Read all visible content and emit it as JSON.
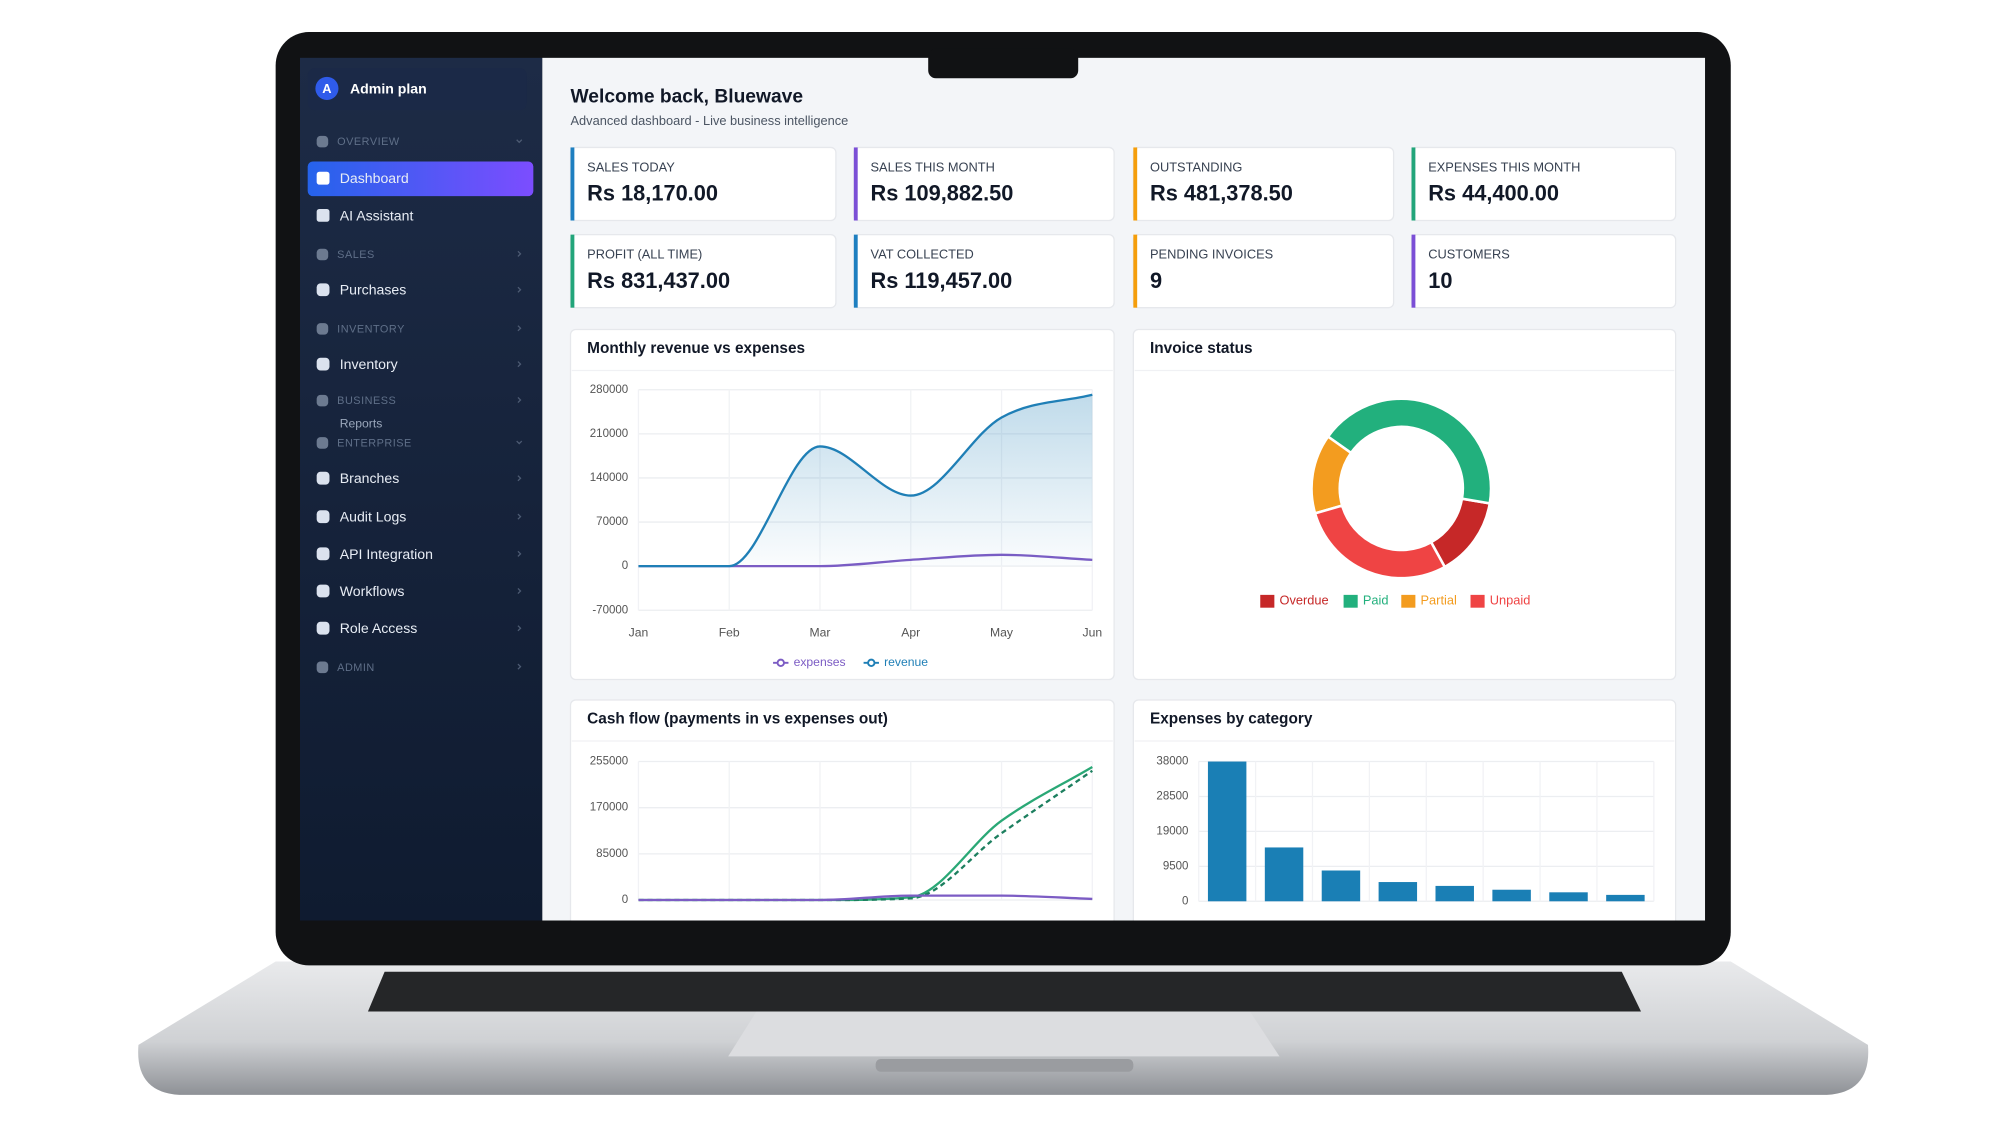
{
  "sidebar": {
    "avatar": "A",
    "account": "Admin plan",
    "items": [
      "OVERVIEW",
      "Dashboard",
      "AI Assistant",
      "SALES",
      "Purchases",
      "INVENTORY",
      "Inventory",
      "BUSINESS",
      "Reports",
      "ENTERPRISE",
      "Branches",
      "Audit Logs",
      "API Integration",
      "Workflows",
      "Role Access",
      "ADMIN"
    ]
  },
  "header": {
    "title": "Welcome back, Bluewave",
    "subtitle": "Advanced dashboard - Live business intelligence"
  },
  "kpis": [
    {
      "label": "SALES TODAY",
      "value": "Rs 18,170.00",
      "color": "#1e7fc0"
    },
    {
      "label": "SALES THIS MONTH",
      "value": "Rs 109,882.50",
      "color": "#7b4fd6"
    },
    {
      "label": "OUTSTANDING",
      "value": "Rs 481,378.50",
      "color": "#f59e0b"
    },
    {
      "label": "EXPENSES THIS MONTH",
      "value": "Rs 44,400.00",
      "color": "#22a57a"
    },
    {
      "label": "PROFIT (ALL TIME)",
      "value": "Rs 831,437.00",
      "color": "#22a57a"
    },
    {
      "label": "VAT COLLECTED",
      "value": "Rs 119,457.00",
      "color": "#1e7fc0"
    },
    {
      "label": "PENDING INVOICES",
      "value": "9",
      "color": "#f59e0b"
    },
    {
      "label": "CUSTOMERS",
      "value": "10",
      "color": "#7b4fd6"
    }
  ],
  "chart_data": [
    {
      "type": "line",
      "title": "Monthly revenue vs expenses",
      "categories": [
        "Jan",
        "Feb",
        "Mar",
        "Apr",
        "May",
        "Jun"
      ],
      "series": [
        {
          "name": "expenses",
          "color": "#7c5cc4",
          "values": [
            0,
            0,
            0,
            10000,
            18000,
            10000
          ]
        },
        {
          "name": "revenue",
          "color": "#1f7fb6",
          "fill": true,
          "values": [
            0,
            0,
            190000,
            112000,
            236000,
            272000
          ]
        }
      ],
      "ylim": [
        -70000,
        280000
      ],
      "yticks": [
        -70000,
        0,
        70000,
        140000,
        210000,
        280000
      ],
      "grid": true
    },
    {
      "type": "doughnut",
      "title": "Invoice status",
      "categories": [
        "Overdue",
        "Paid",
        "Partial",
        "Unpaid"
      ],
      "values": [
        2,
        6,
        2,
        4
      ],
      "colors": [
        "#c62828",
        "#22b07d",
        "#f39c1f",
        "#ef4444"
      ]
    },
    {
      "type": "line",
      "title": "Cash flow (payments in vs expenses out)",
      "series": [
        {
          "color": "#2aa876",
          "values": [
            0,
            0,
            0,
            5000,
            146000,
            245000
          ]
        },
        {
          "color": "#1d7f5f",
          "dashed": true,
          "values": [
            0,
            0,
            0,
            3000,
            123000,
            238000
          ]
        },
        {
          "color": "#7c5cc4",
          "values": [
            0,
            0,
            0,
            8000,
            8000,
            2000
          ]
        }
      ],
      "ylim": [
        0,
        255000
      ],
      "yticks": [
        0,
        85000,
        170000,
        255000
      ],
      "grid": true
    },
    {
      "type": "bar",
      "title": "Expenses by category",
      "values": [
        38000,
        14640,
        8370,
        5230,
        4180,
        3140,
        2440,
        1740
      ],
      "color": "#1a7fb5",
      "ylim": [
        0,
        38000
      ],
      "yticks": [
        0,
        9500,
        19000,
        28500,
        38000
      ],
      "grid": true
    }
  ]
}
